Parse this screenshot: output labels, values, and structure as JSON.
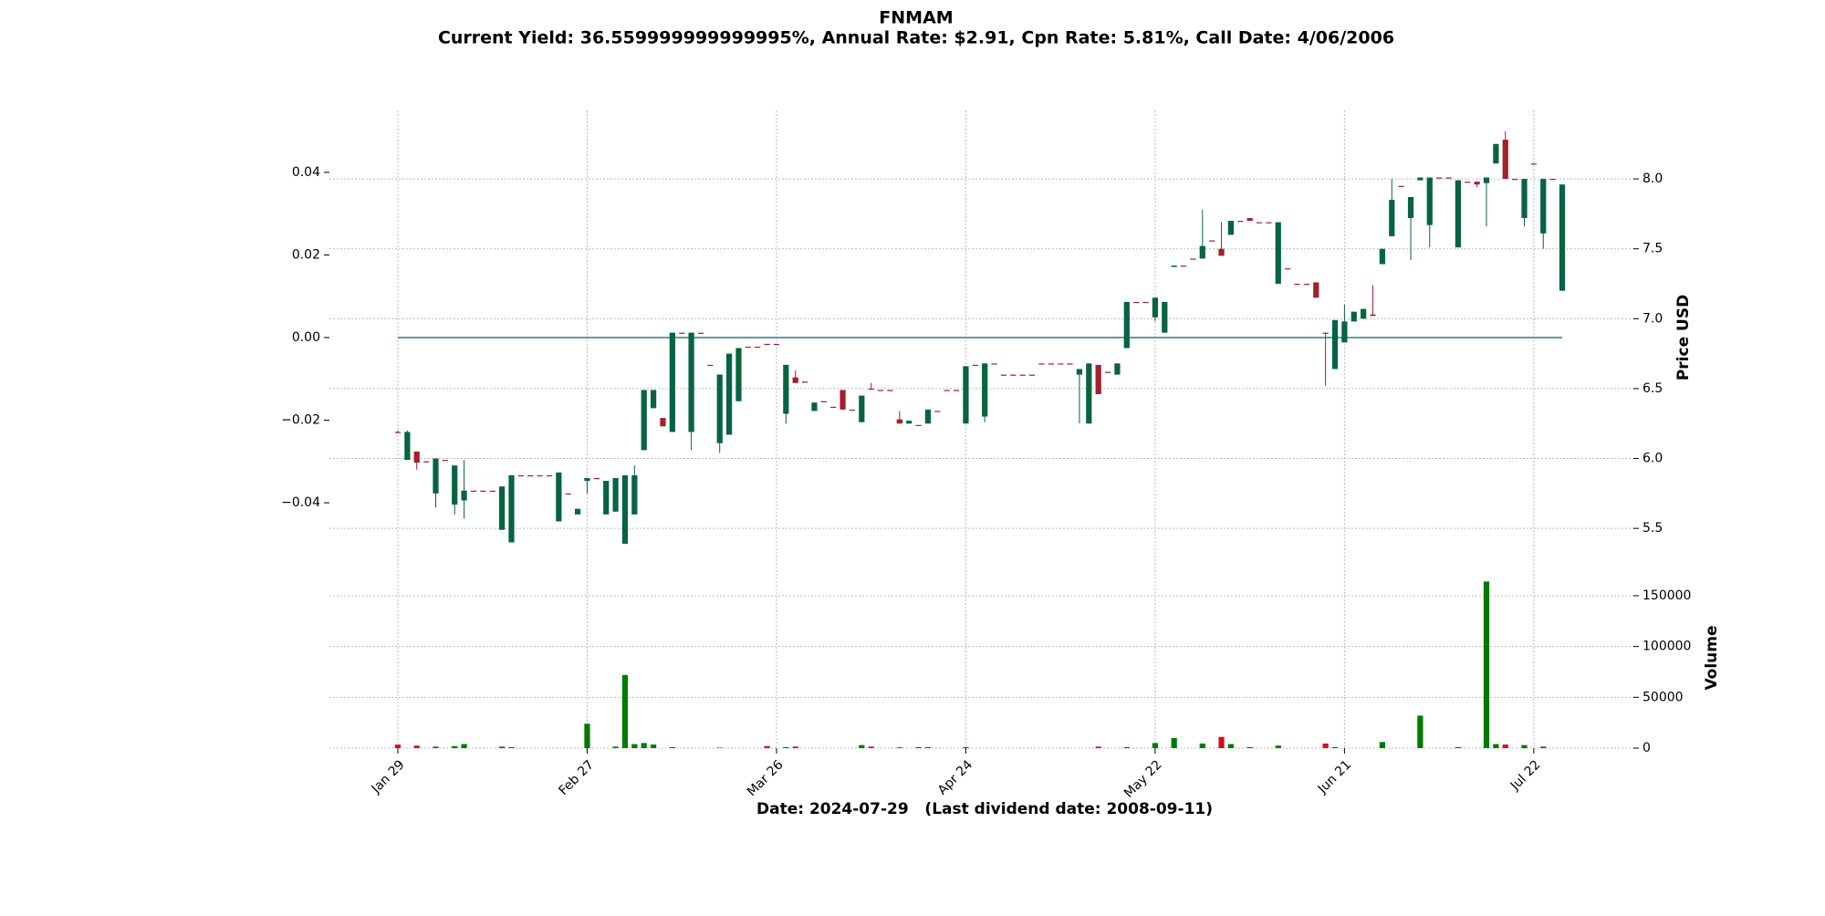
{
  "chart_data": {
    "type": "candlestick",
    "title": "FNMAM",
    "subtitle": "Current Yield: 36.559999999999995%, Annual Rate: $2.91, Cpn Rate: 5.81%, Call Date: 4/06/2006",
    "xlabel": "Date: 2024-07-29   (Last dividend date: 2008-09-11)",
    "ylabel": "Price USD",
    "volume_label": "Volume",
    "categories": [
      "Jan 29",
      null,
      null,
      null,
      null,
      null,
      null,
      null,
      null,
      null,
      null,
      null,
      null,
      null,
      null,
      null,
      null,
      null,
      null,
      null,
      "Feb 27",
      null,
      null,
      null,
      null,
      null,
      null,
      null,
      null,
      null,
      null,
      null,
      null,
      null,
      null,
      null,
      null,
      null,
      null,
      null,
      "Mar 26",
      null,
      null,
      null,
      null,
      null,
      null,
      null,
      null,
      null,
      null,
      null,
      null,
      null,
      null,
      null,
      null,
      null,
      null,
      null,
      "Apr 24",
      null,
      null,
      null,
      null,
      null,
      null,
      null,
      null,
      null,
      null,
      null,
      null,
      null,
      null,
      null,
      null,
      null,
      null,
      null,
      "May 22",
      null,
      null,
      null,
      null,
      null,
      null,
      null,
      null,
      null,
      null,
      null,
      null,
      null,
      null,
      null,
      null,
      null,
      null,
      null,
      "Jun 21",
      null,
      null,
      null,
      null,
      null,
      null,
      null,
      null,
      null,
      null,
      null,
      null,
      null,
      null,
      null,
      null,
      null,
      null,
      null,
      "Jul 22",
      null,
      null,
      null
    ],
    "open": [
      6.19,
      5.99,
      6.05,
      5.98,
      5.75,
      5.99,
      5.67,
      5.7,
      5.77,
      5.77,
      5.77,
      5.49,
      5.4,
      5.88,
      5.88,
      5.88,
      5.88,
      5.55,
      5.75,
      5.6,
      5.84,
      5.86,
      5.6,
      5.62,
      5.39,
      5.6,
      6.06,
      6.36,
      6.29,
      6.19,
      6.9,
      6.19,
      6.9,
      6.67,
      6.11,
      6.17,
      6.41,
      6.8,
      6.8,
      6.82,
      6.82,
      6.32,
      6.58,
      6.55,
      6.34,
      6.41,
      6.37,
      6.49,
      6.35,
      6.26,
      6.5,
      6.49,
      6.49,
      6.28,
      6.25,
      6.24,
      6.25,
      6.34,
      6.49,
      6.49,
      6.25,
      6.67,
      6.3,
      6.68,
      6.6,
      6.6,
      6.6,
      6.6,
      6.68,
      6.68,
      6.68,
      6.68,
      6.6,
      6.25,
      6.67,
      6.62,
      6.6,
      6.79,
      7.12,
      7.12,
      7.01,
      6.9,
      7.37,
      7.38,
      7.43,
      7.43,
      7.56,
      7.5,
      7.6,
      7.7,
      7.72,
      7.69,
      7.69,
      7.25,
      7.36,
      7.25,
      7.25,
      7.26,
      6.9,
      6.64,
      6.83,
      6.98,
      7.0,
      7.03,
      7.39,
      7.59,
      7.95,
      7.72,
      7.99,
      7.67,
      8.01,
      8.01,
      7.51,
      7.98,
      7.98,
      7.97,
      8.11,
      8.28,
      8.0,
      7.72,
      8.11,
      7.61,
      8.0,
      7.2
    ],
    "high": [
      6.2,
      6.2,
      6.05,
      5.98,
      6.0,
      5.99,
      5.95,
      5.99,
      5.77,
      5.77,
      5.77,
      5.8,
      5.88,
      5.88,
      5.88,
      5.88,
      5.88,
      5.9,
      5.75,
      5.64,
      5.86,
      5.86,
      5.84,
      5.86,
      5.88,
      5.95,
      6.49,
      6.49,
      6.29,
      6.9,
      6.9,
      6.9,
      6.9,
      6.67,
      6.6,
      6.75,
      6.79,
      6.8,
      6.8,
      6.82,
      6.82,
      6.67,
      6.63,
      6.55,
      6.4,
      6.41,
      6.37,
      6.49,
      6.35,
      6.45,
      6.54,
      6.49,
      6.49,
      6.34,
      6.27,
      6.24,
      6.35,
      6.34,
      6.49,
      6.49,
      6.66,
      6.67,
      6.68,
      6.68,
      6.6,
      6.6,
      6.6,
      6.6,
      6.68,
      6.68,
      6.68,
      6.68,
      6.64,
      6.68,
      6.67,
      6.62,
      6.68,
      7.12,
      7.12,
      7.12,
      7.15,
      7.12,
      7.38,
      7.38,
      7.43,
      7.78,
      7.56,
      7.69,
      7.7,
      7.7,
      7.72,
      7.69,
      7.69,
      7.69,
      7.36,
      7.25,
      7.25,
      7.26,
      6.9,
      6.99,
      7.1,
      7.05,
      7.07,
      7.24,
      7.5,
      8.0,
      7.95,
      7.87,
      8.01,
      8.01,
      8.01,
      8.01,
      7.99,
      7.98,
      7.98,
      8.01,
      8.25,
      8.34,
      8.0,
      8.0,
      8.11,
      8.0,
      8.0,
      7.96
    ],
    "low": [
      6.18,
      5.99,
      5.92,
      5.98,
      5.65,
      5.99,
      5.6,
      5.57,
      5.77,
      5.77,
      5.77,
      5.49,
      5.4,
      5.88,
      5.88,
      5.88,
      5.88,
      5.55,
      5.75,
      5.6,
      5.75,
      5.86,
      5.6,
      5.62,
      5.39,
      5.6,
      6.06,
      6.36,
      6.23,
      6.19,
      6.9,
      6.06,
      6.9,
      6.67,
      6.04,
      6.17,
      6.41,
      6.8,
      6.8,
      6.82,
      6.82,
      6.25,
      6.54,
      6.55,
      6.34,
      6.41,
      6.37,
      6.35,
      6.35,
      6.26,
      6.5,
      6.49,
      6.49,
      6.25,
      6.25,
      6.24,
      6.25,
      6.34,
      6.49,
      6.49,
      6.25,
      6.67,
      6.26,
      6.68,
      6.6,
      6.6,
      6.6,
      6.6,
      6.68,
      6.68,
      6.68,
      6.68,
      6.25,
      6.25,
      6.46,
      6.62,
      6.6,
      6.79,
      7.12,
      7.12,
      6.98,
      6.9,
      7.37,
      7.38,
      7.43,
      7.43,
      7.56,
      7.45,
      7.6,
      7.7,
      7.7,
      7.69,
      7.69,
      7.25,
      7.36,
      7.25,
      7.25,
      7.15,
      6.52,
      6.64,
      6.83,
      6.98,
      7.0,
      7.02,
      7.39,
      7.59,
      7.95,
      7.42,
      7.99,
      7.51,
      8.01,
      8.01,
      7.51,
      7.98,
      7.94,
      7.66,
      8.11,
      8.0,
      8.0,
      7.66,
      8.11,
      7.5,
      8.0,
      7.2
    ],
    "close": [
      6.19,
      6.19,
      5.97,
      5.98,
      6.0,
      5.99,
      5.95,
      5.77,
      5.77,
      5.77,
      5.77,
      5.8,
      5.88,
      5.88,
      5.88,
      5.88,
      5.88,
      5.9,
      5.75,
      5.64,
      5.86,
      5.86,
      5.84,
      5.86,
      5.88,
      5.88,
      6.49,
      6.49,
      6.23,
      6.9,
      6.9,
      6.9,
      6.9,
      6.67,
      6.6,
      6.75,
      6.79,
      6.8,
      6.8,
      6.82,
      6.82,
      6.67,
      6.54,
      6.55,
      6.4,
      6.41,
      6.37,
      6.35,
      6.35,
      6.45,
      6.5,
      6.49,
      6.49,
      6.25,
      6.27,
      6.24,
      6.35,
      6.34,
      6.49,
      6.49,
      6.66,
      6.67,
      6.68,
      6.68,
      6.6,
      6.6,
      6.6,
      6.6,
      6.68,
      6.68,
      6.68,
      6.68,
      6.64,
      6.68,
      6.46,
      6.62,
      6.68,
      7.12,
      7.12,
      7.12,
      7.15,
      7.12,
      7.38,
      7.38,
      7.43,
      7.52,
      7.56,
      7.45,
      7.7,
      7.7,
      7.7,
      7.69,
      7.69,
      7.69,
      7.36,
      7.25,
      7.25,
      7.15,
      6.9,
      6.99,
      6.98,
      7.05,
      7.07,
      7.02,
      7.5,
      7.85,
      7.95,
      7.87,
      8.01,
      8.01,
      8.01,
      8.01,
      7.99,
      7.98,
      7.96,
      8.01,
      8.25,
      8.0,
      8.0,
      8.0,
      8.11,
      8.0,
      8.0,
      7.96
    ],
    "volume": [
      3500,
      0,
      2500,
      0,
      1500,
      0,
      2000,
      4000,
      0,
      0,
      0,
      1500,
      1000,
      0,
      0,
      0,
      0,
      0,
      0,
      0,
      24000,
      0,
      0,
      1500,
      72000,
      4000,
      5000,
      3500,
      0,
      1000,
      0,
      0,
      0,
      0,
      500,
      0,
      0,
      0,
      0,
      2000,
      0,
      1000,
      1500,
      0,
      0,
      0,
      0,
      0,
      0,
      3000,
      1500,
      0,
      0,
      800,
      0,
      1000,
      1000,
      0,
      0,
      0,
      1000,
      0,
      0,
      0,
      0,
      0,
      0,
      0,
      0,
      0,
      0,
      0,
      0,
      0,
      1500,
      0,
      0,
      1000,
      0,
      0,
      5000,
      0,
      10000,
      0,
      0,
      4500,
      0,
      11000,
      4000,
      0,
      1000,
      0,
      0,
      2500,
      0,
      0,
      0,
      0,
      4500,
      1000,
      0,
      0,
      0,
      0,
      6000,
      0,
      0,
      0,
      32000,
      0,
      0,
      0,
      1000,
      0,
      0,
      164000,
      4000,
      3500,
      0,
      3000,
      0,
      1500,
      0,
      0
    ],
    "up_color": "#07643f",
    "down_color": "#a3202c",
    "volume_up_color": "#007a00",
    "volume_down_color": "#d0101a",
    "ylim": [
      5.24,
      8.49
    ],
    "yticks": [
      5.5,
      {
        "value": 6.0,
        "label": "6.0"
      },
      6.5,
      {
        "value": 7.0,
        "label": "7.0"
      },
      7.5,
      {
        "value": 8.0,
        "label": "8.0"
      }
    ],
    "y2lim": [
      -0.055,
      0.055
    ],
    "y2ticks": [
      {
        "value": -0.04,
        "label": "−0.04"
      },
      {
        "value": -0.02,
        "label": "−0.02"
      },
      {
        "value": 0,
        "label": "0.00"
      },
      0.02,
      0.04
    ],
    "hline": {
      "value": 0,
      "color": "#2a7f8f",
      "axis": "y2"
    },
    "volume_ylim": [
      0,
      180500
    ],
    "volume_ticks": [
      0,
      50000,
      100000,
      150000
    ],
    "grid": true
  }
}
